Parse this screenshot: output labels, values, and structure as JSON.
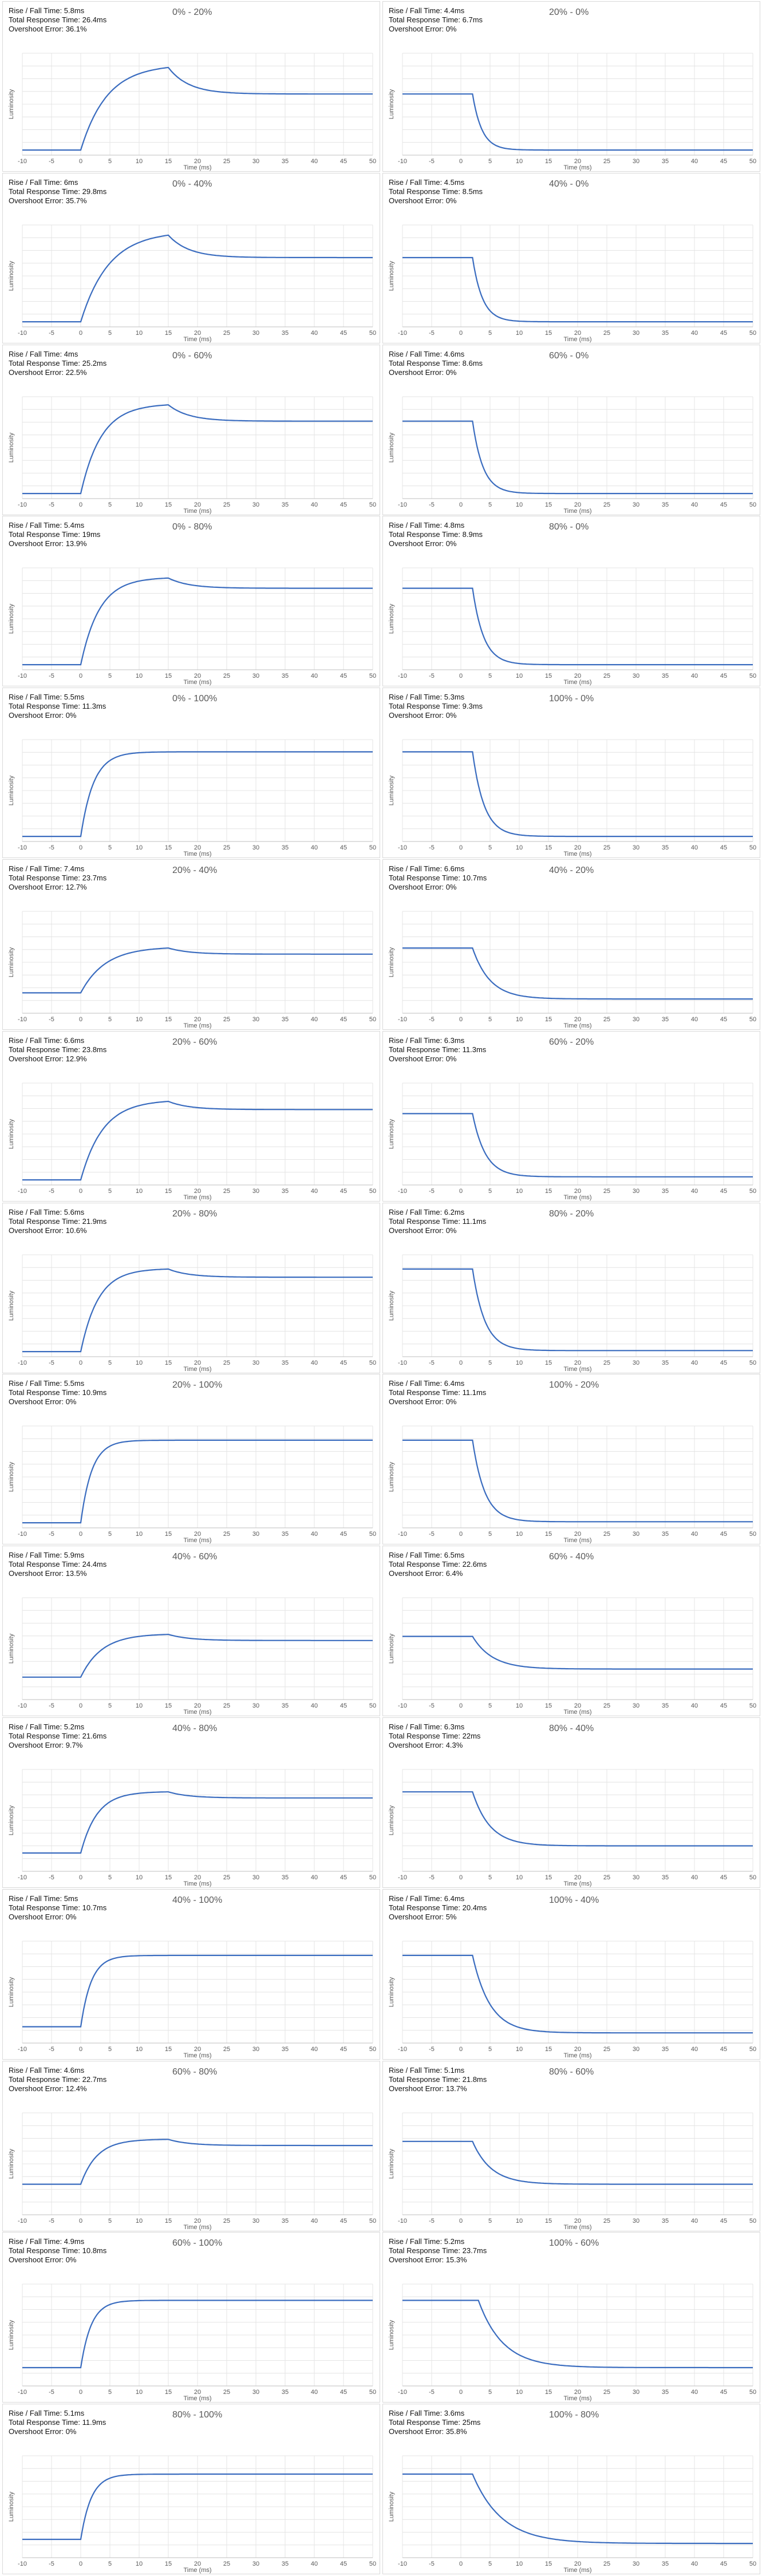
{
  "chart_data": {
    "type": "line",
    "xlabel": "Time (ms)",
    "ylabel": "Luminosity",
    "x_ticks": [
      -10,
      -5,
      0,
      5,
      10,
      15,
      20,
      25,
      30,
      35,
      40,
      45,
      50
    ],
    "xlim": [
      -10,
      50
    ],
    "grid": true,
    "series_color": "#3a6cbf",
    "transitions": [
      {
        "title": "0% - 20%",
        "rise_fall": "Rise / Fall Time: 5.8ms",
        "total": "Total Response Time: 26.4ms",
        "overshoot": "Overshoot Error: 36.1%",
        "from": 0.05,
        "to": 0.6,
        "peak": 0.86,
        "tau": 4.5,
        "delay": 0
      },
      {
        "title": "20% - 0%",
        "rise_fall": "Rise / Fall Time: 4.4ms",
        "total": "Total Response Time: 6.7ms",
        "overshoot": "Overshoot Error: 0%",
        "from": 0.6,
        "to": 0.05,
        "peak": null,
        "tau": 1.6,
        "delay": 2
      },
      {
        "title": "0% - 40%",
        "rise_fall": "Rise / Fall Time: 6ms",
        "total": "Total Response Time: 29.8ms",
        "overshoot": "Overshoot Error: 35.7%",
        "from": 0.05,
        "to": 0.68,
        "peak": 0.9,
        "tau": 4.8,
        "delay": 0
      },
      {
        "title": "40% - 0%",
        "rise_fall": "Rise / Fall Time: 4.5ms",
        "total": "Total Response Time: 8.5ms",
        "overshoot": "Overshoot Error: 0%",
        "from": 0.68,
        "to": 0.05,
        "peak": null,
        "tau": 1.7,
        "delay": 2
      },
      {
        "title": "0% - 60%",
        "rise_fall": "Rise / Fall Time: 4ms",
        "total": "Total Response Time: 25.2ms",
        "overshoot": "Overshoot Error: 22.5%",
        "from": 0.05,
        "to": 0.76,
        "peak": 0.92,
        "tau": 3.5,
        "delay": 0
      },
      {
        "title": "60% - 0%",
        "rise_fall": "Rise / Fall Time: 4.6ms",
        "total": "Total Response Time: 8.6ms",
        "overshoot": "Overshoot Error: 0%",
        "from": 0.76,
        "to": 0.05,
        "peak": null,
        "tau": 1.8,
        "delay": 2
      },
      {
        "title": "0% - 80%",
        "rise_fall": "Rise / Fall Time: 5.4ms",
        "total": "Total Response Time: 19ms",
        "overshoot": "Overshoot Error: 13.9%",
        "from": 0.05,
        "to": 0.8,
        "peak": 0.9,
        "tau": 3.2,
        "delay": 0
      },
      {
        "title": "80% - 0%",
        "rise_fall": "Rise / Fall Time: 4.8ms",
        "total": "Total Response Time: 8.9ms",
        "overshoot": "Overshoot Error: 0%",
        "from": 0.8,
        "to": 0.05,
        "peak": null,
        "tau": 1.9,
        "delay": 2
      },
      {
        "title": "0% - 100%",
        "rise_fall": "Rise / Fall Time: 5.5ms",
        "total": "Total Response Time: 11.3ms",
        "overshoot": "Overshoot Error: 0%",
        "from": 0.05,
        "to": 0.88,
        "peak": null,
        "tau": 2.2,
        "delay": 0
      },
      {
        "title": "100% - 0%",
        "rise_fall": "Rise / Fall Time: 5.3ms",
        "total": "Total Response Time: 9.3ms",
        "overshoot": "Overshoot Error: 0%",
        "from": 0.88,
        "to": 0.05,
        "peak": null,
        "tau": 2.0,
        "delay": 2
      },
      {
        "title": "20% - 40%",
        "rise_fall": "Rise / Fall Time: 7.4ms",
        "total": "Total Response Time: 23.7ms",
        "overshoot": "Overshoot Error: 12.7%",
        "from": 0.2,
        "to": 0.58,
        "peak": 0.64,
        "tau": 4.2,
        "delay": 0
      },
      {
        "title": "40% - 20%",
        "rise_fall": "Rise / Fall Time: 6.6ms",
        "total": "Total Response Time: 10.7ms",
        "overshoot": "Overshoot Error: 0%",
        "from": 0.64,
        "to": 0.14,
        "peak": null,
        "tau": 3.0,
        "delay": 2
      },
      {
        "title": "20% - 60%",
        "rise_fall": "Rise / Fall Time: 6.6ms",
        "total": "Total Response Time: 23.8ms",
        "overshoot": "Overshoot Error: 12.9%",
        "from": 0.05,
        "to": 0.74,
        "peak": 0.82,
        "tau": 3.8,
        "delay": 0
      },
      {
        "title": "60% - 20%",
        "rise_fall": "Rise / Fall Time: 6.3ms",
        "total": "Total Response Time: 11.3ms",
        "overshoot": "Overshoot Error: 0%",
        "from": 0.7,
        "to": 0.08,
        "peak": null,
        "tau": 2.2,
        "delay": 2
      },
      {
        "title": "20% - 80%",
        "rise_fall": "Rise / Fall Time: 5.6ms",
        "total": "Total Response Time: 21.9ms",
        "overshoot": "Overshoot Error: 10.6%",
        "from": 0.05,
        "to": 0.78,
        "peak": 0.86,
        "tau": 3.0,
        "delay": 0
      },
      {
        "title": "80% - 20%",
        "rise_fall": "Rise / Fall Time: 6.2ms",
        "total": "Total Response Time: 11.1ms",
        "overshoot": "Overshoot Error: 0%",
        "from": 0.86,
        "to": 0.06,
        "peak": null,
        "tau": 2.1,
        "delay": 2
      },
      {
        "title": "20% - 100%",
        "rise_fall": "Rise / Fall Time: 5.5ms",
        "total": "Total Response Time: 10.9ms",
        "overshoot": "Overshoot Error: 0%",
        "from": 0.05,
        "to": 0.86,
        "peak": null,
        "tau": 1.9,
        "delay": 0
      },
      {
        "title": "100% - 20%",
        "rise_fall": "Rise / Fall Time: 6.4ms",
        "total": "Total Response Time: 11.1ms",
        "overshoot": "Overshoot Error: 0%",
        "from": 0.86,
        "to": 0.06,
        "peak": null,
        "tau": 2.1,
        "delay": 2
      },
      {
        "title": "40% - 60%",
        "rise_fall": "Rise / Fall Time: 5.9ms",
        "total": "Total Response Time: 24.4ms",
        "overshoot": "Overshoot Error: 13.5%",
        "from": 0.22,
        "to": 0.58,
        "peak": 0.64,
        "tau": 3.6,
        "delay": 0
      },
      {
        "title": "60% - 40%",
        "rise_fall": "Rise / Fall Time: 6.5ms",
        "total": "Total Response Time: 22.6ms",
        "overshoot": "Overshoot Error: 6.4%",
        "from": 0.62,
        "to": 0.3,
        "peak": null,
        "tau": 3.4,
        "delay": 2
      },
      {
        "title": "40% - 80%",
        "rise_fall": "Rise / Fall Time: 5.2ms",
        "total": "Total Response Time: 21.6ms",
        "overshoot": "Overshoot Error: 9.7%",
        "from": 0.18,
        "to": 0.72,
        "peak": 0.78,
        "tau": 2.8,
        "delay": 0
      },
      {
        "title": "80% - 40%",
        "rise_fall": "Rise / Fall Time: 6.3ms",
        "total": "Total Response Time: 22ms",
        "overshoot": "Overshoot Error: 4.3%",
        "from": 0.78,
        "to": 0.25,
        "peak": null,
        "tau": 3.0,
        "delay": 2
      },
      {
        "title": "40% - 100%",
        "rise_fall": "Rise / Fall Time: 5ms",
        "total": "Total Response Time: 10.7ms",
        "overshoot": "Overshoot Error: 0%",
        "from": 0.16,
        "to": 0.86,
        "peak": null,
        "tau": 1.8,
        "delay": 0
      },
      {
        "title": "100% - 40%",
        "rise_fall": "Rise / Fall Time: 6.4ms",
        "total": "Total Response Time: 20.4ms",
        "overshoot": "Overshoot Error: 5%",
        "from": 0.86,
        "to": 0.1,
        "peak": null,
        "tau": 3.0,
        "delay": 2
      },
      {
        "title": "60% - 80%",
        "rise_fall": "Rise / Fall Time: 4.6ms",
        "total": "Total Response Time: 22.7ms",
        "overshoot": "Overshoot Error: 12.4%",
        "from": 0.3,
        "to": 0.68,
        "peak": 0.74,
        "tau": 2.8,
        "delay": 0
      },
      {
        "title": "80% - 60%",
        "rise_fall": "Rise / Fall Time: 5.1ms",
        "total": "Total Response Time: 21.8ms",
        "overshoot": "Overshoot Error: 13.7%",
        "from": 0.72,
        "to": 0.3,
        "peak": null,
        "tau": 3.2,
        "delay": 2
      },
      {
        "title": "60% - 100%",
        "rise_fall": "Rise / Fall Time: 4.9ms",
        "total": "Total Response Time: 10.8ms",
        "overshoot": "Overshoot Error: 0%",
        "from": 0.18,
        "to": 0.84,
        "peak": null,
        "tau": 1.8,
        "delay": 0
      },
      {
        "title": "100% - 60%",
        "rise_fall": "Rise / Fall Time: 5.2ms",
        "total": "Total Response Time: 23.7ms",
        "overshoot": "Overshoot Error: 15.3%",
        "from": 0.84,
        "to": 0.18,
        "peak": null,
        "tau": 4.2,
        "delay": 3
      },
      {
        "title": "80% - 100%",
        "rise_fall": "Rise / Fall Time: 5.1ms",
        "total": "Total Response Time: 11.9ms",
        "overshoot": "Overshoot Error: 0%",
        "from": 0.18,
        "to": 0.82,
        "peak": null,
        "tau": 1.8,
        "delay": 0
      },
      {
        "title": "100% - 80%",
        "rise_fall": "Rise / Fall Time: 3.6ms",
        "total": "Total Response Time: 25ms",
        "overshoot": "Overshoot Error: 35.8%",
        "from": 0.82,
        "to": 0.14,
        "peak": null,
        "tau": 5.0,
        "delay": 2
      }
    ]
  }
}
